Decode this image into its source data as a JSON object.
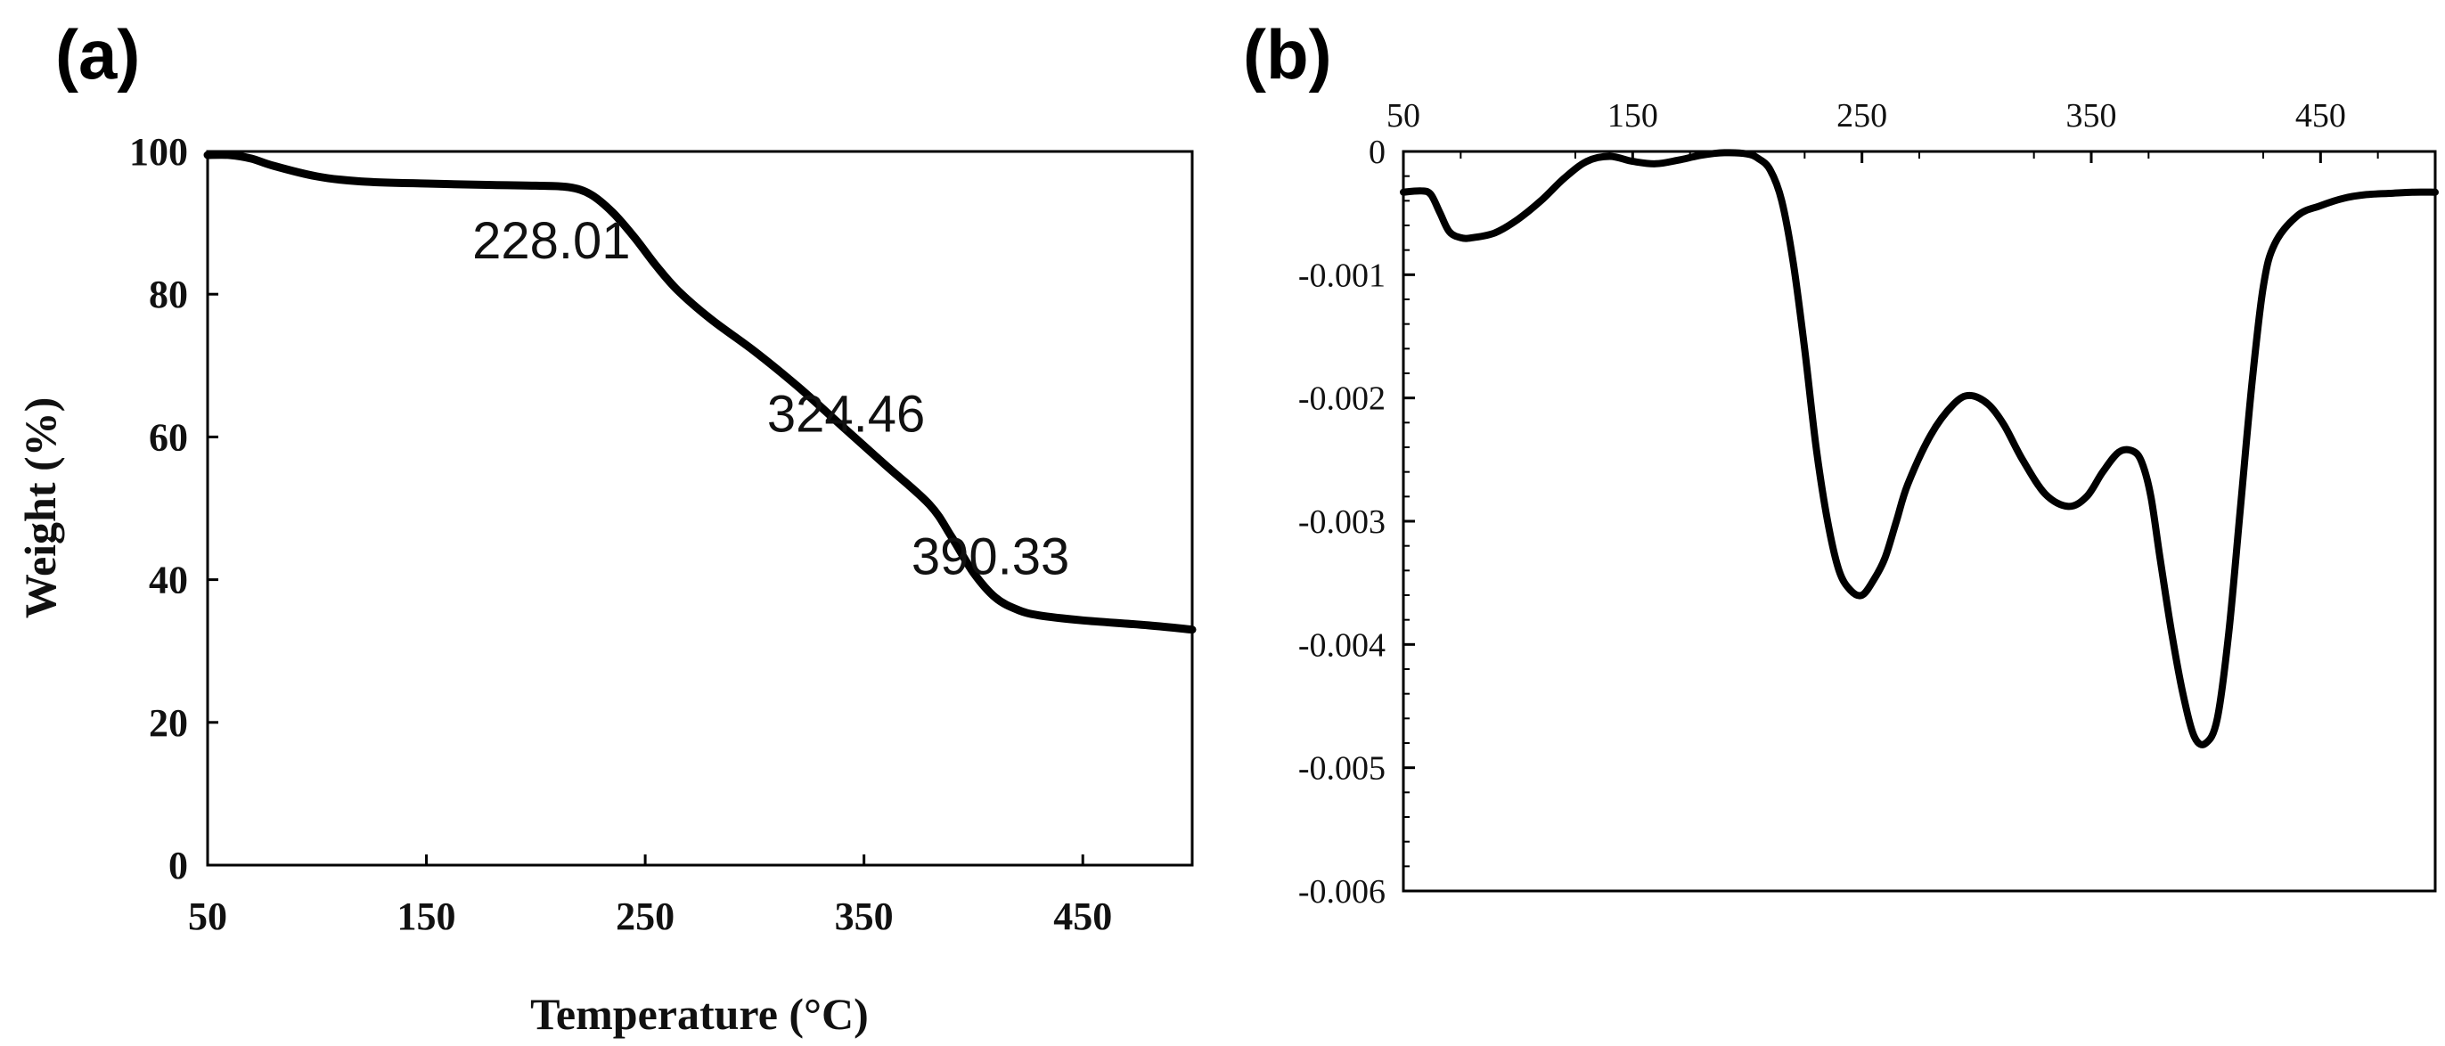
{
  "panel_labels": {
    "a": "(a)",
    "b": "(b)"
  },
  "chart_data": [
    {
      "type": "line",
      "panel": "(a)",
      "xlabel": "Temperature (°C)",
      "ylabel": "Weight (%)",
      "xlim": [
        50,
        500
      ],
      "ylim": [
        0,
        100
      ],
      "xticks": [
        50,
        150,
        250,
        350,
        450
      ],
      "yticks": [
        0,
        20,
        40,
        60,
        80,
        100
      ],
      "grid": false,
      "series": [
        {
          "x": [
            50,
            60,
            70,
            80,
            100,
            120,
            150,
            180,
            200,
            215,
            225,
            235,
            245,
            255,
            265,
            280,
            300,
            320,
            340,
            360,
            380,
            390,
            400,
            410,
            420,
            430,
            450,
            480,
            500
          ],
          "y": [
            99.5,
            99.5,
            99,
            98,
            96.5,
            95.8,
            95.5,
            95.3,
            95.2,
            95,
            94,
            91.5,
            88,
            84,
            80.5,
            76.5,
            72,
            67,
            61.5,
            56,
            50.5,
            46,
            41,
            37.5,
            35.8,
            35,
            34.3,
            33.6,
            33
          ]
        }
      ],
      "annotations": [
        {
          "text": "228.01",
          "x": 228,
          "y": 94
        },
        {
          "text": "324.46",
          "x": 324,
          "y": 66
        },
        {
          "text": "390.33",
          "x": 390,
          "y": 46
        }
      ]
    },
    {
      "type": "line",
      "panel": "(b)",
      "xlabel": "",
      "ylabel": "",
      "xlim": [
        50,
        500
      ],
      "ylim": [
        -0.006,
        0
      ],
      "xticks": [
        50,
        150,
        250,
        350,
        450
      ],
      "xtick_position": "top",
      "yticks": [
        0,
        -0.001,
        -0.002,
        -0.003,
        -0.004,
        -0.005,
        -0.006
      ],
      "ytick_labels": [
        "0",
        "-0.001",
        "-0.002",
        "-0.003",
        "-0.004",
        "-0.005",
        "-0.006"
      ],
      "grid": false,
      "series": [
        {
          "x": [
            50,
            58,
            62,
            66,
            70,
            75,
            80,
            90,
            100,
            110,
            120,
            130,
            140,
            150,
            160,
            170,
            180,
            190,
            200,
            205,
            210,
            215,
            220,
            225,
            230,
            235,
            240,
            245,
            250,
            255,
            260,
            265,
            270,
            280,
            290,
            297,
            305,
            312,
            320,
            330,
            340,
            348,
            355,
            362,
            368,
            372,
            376,
            380,
            385,
            390,
            395,
            400,
            405,
            410,
            415,
            420,
            425,
            430,
            440,
            450,
            460,
            470,
            480,
            490,
            500
          ],
          "y": [
            -0.00033,
            -0.00032,
            -0.00035,
            -0.0005,
            -0.00065,
            -0.0007,
            -0.0007,
            -0.00066,
            -0.00055,
            -0.0004,
            -0.00022,
            -8e-05,
            -4e-05,
            -8e-05,
            -0.0001,
            -7e-05,
            -3e-05,
            -1e-05,
            -2e-05,
            -6e-05,
            -0.00015,
            -0.0004,
            -0.0009,
            -0.0016,
            -0.0024,
            -0.003,
            -0.0034,
            -0.00356,
            -0.0036,
            -0.00348,
            -0.0033,
            -0.003,
            -0.0027,
            -0.0023,
            -0.00205,
            -0.00198,
            -0.00205,
            -0.00222,
            -0.0025,
            -0.00278,
            -0.00288,
            -0.0028,
            -0.0026,
            -0.00244,
            -0.00243,
            -0.00252,
            -0.0028,
            -0.0033,
            -0.0039,
            -0.0044,
            -0.00475,
            -0.0048,
            -0.0046,
            -0.0039,
            -0.0029,
            -0.0019,
            -0.0011,
            -0.00075,
            -0.00052,
            -0.00044,
            -0.00038,
            -0.00035,
            -0.00034,
            -0.00033,
            -0.00033
          ]
        }
      ]
    }
  ]
}
